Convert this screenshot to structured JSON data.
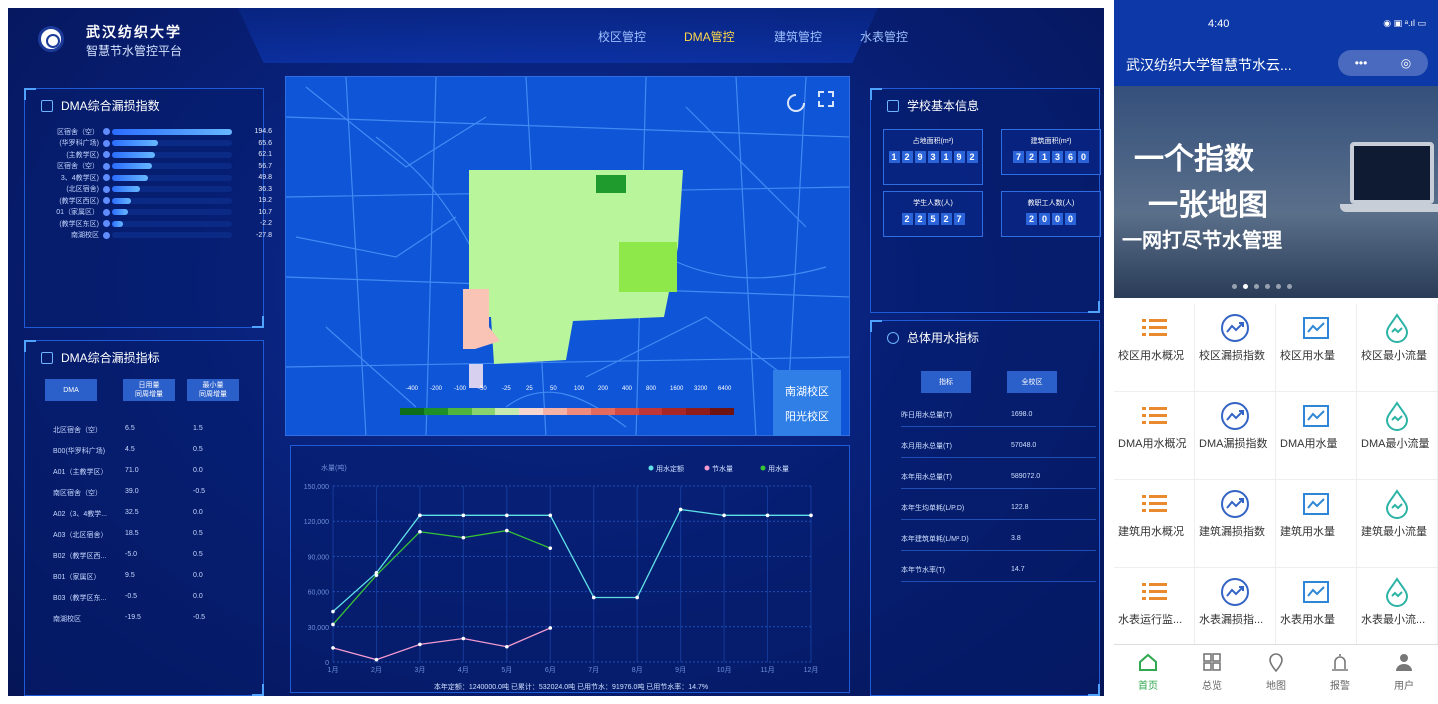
{
  "header": {
    "school": "武汉纺织大学",
    "platform": "智慧节水管控平台",
    "nav": [
      "校区管控",
      "DMA管控",
      "建筑管控",
      "水表管控"
    ],
    "active_nav": "DMA管控"
  },
  "leak_index": {
    "title": "DMA综合漏损指数",
    "rows": [
      {
        "label": "区宿舍（空）",
        "value": "194.6",
        "ratio": 1.0
      },
      {
        "label": "(华罗科广场)",
        "value": "65.6",
        "ratio": 0.38
      },
      {
        "label": "(主教学区)",
        "value": "62.1",
        "ratio": 0.36
      },
      {
        "label": "区宿舍（空）",
        "value": "56.7",
        "ratio": 0.33
      },
      {
        "label": "3、4教学区)",
        "value": "49.8",
        "ratio": 0.3
      },
      {
        "label": "(北区宿舍)",
        "value": "36.3",
        "ratio": 0.23
      },
      {
        "label": "(教学区西区)",
        "value": "19.2",
        "ratio": 0.16
      },
      {
        "label": "01（家属区）",
        "value": "10.7",
        "ratio": 0.13
      },
      {
        "label": "(教学区东区)",
        "value": "-2.2",
        "ratio": 0.09
      },
      {
        "label": "南湖校区",
        "value": "-27.8",
        "ratio": 0.0
      }
    ]
  },
  "leak_table": {
    "title": "DMA综合漏损指标",
    "headers": [
      "DMA",
      "日用量\n同周增量",
      "最小量\n同周增量"
    ],
    "rows": [
      [
        "北区宿舍（空）",
        "6.5",
        "1.5"
      ],
      [
        "B00(华罗科广场)",
        "4.5",
        "0.5"
      ],
      [
        "A01（主教学区）",
        "71.0",
        "0.0"
      ],
      [
        "南区宿舍（空）",
        "39.0",
        "-0.5"
      ],
      [
        "A02（3、4教学...",
        "32.5",
        "0.0"
      ],
      [
        "A03（北区宿舍）",
        "18.5",
        "0.5"
      ],
      [
        "B02（教学区西...",
        "-5.0",
        "0.5"
      ],
      [
        "B01（家属区）",
        "9.5",
        "0.0"
      ],
      [
        "B03（教学区东...",
        "-0.5",
        "0.0"
      ],
      [
        "南湖校区",
        "-19.5",
        "-0.5"
      ]
    ]
  },
  "map": {
    "legend": [
      "-400",
      "-200",
      "-100",
      "-50",
      "-25",
      "25",
      "50",
      "100",
      "200",
      "400",
      "800",
      "1600",
      "3200",
      "6400"
    ],
    "legend_colors": [
      "#0e6e1c",
      "#1f8f2a",
      "#4fb53e",
      "#8ad46f",
      "#c7eab0",
      "#f6d5cf",
      "#f4b2a6",
      "#ef8a7c",
      "#e36a5f",
      "#d34b45",
      "#c03535",
      "#a92626",
      "#8f1b1b",
      "#6e1212"
    ],
    "campuses": [
      "南湖校区",
      "阳光校区"
    ]
  },
  "chart_data": {
    "type": "line",
    "ylabel": "水量(吨)",
    "categories": [
      "1月",
      "2月",
      "3月",
      "4月",
      "5月",
      "6月",
      "7月",
      "8月",
      "9月",
      "10月",
      "11月",
      "12月"
    ],
    "ylim": [
      0,
      150000
    ],
    "yticks": [
      "150,000",
      "120,000",
      "90,000",
      "60,000",
      "30,000",
      "0"
    ],
    "series": [
      {
        "name": "用水定额",
        "color": "#5fe0e8",
        "values": [
          43000,
          76000,
          125000,
          125000,
          125000,
          125000,
          55000,
          55000,
          130000,
          125000,
          125000,
          125000
        ]
      },
      {
        "name": "节水量",
        "color": "#f29ad0",
        "values": [
          12000,
          2000,
          15000,
          20000,
          13000,
          29000,
          null,
          null,
          null,
          null,
          null,
          null
        ]
      },
      {
        "name": "用水量",
        "color": "#37c437",
        "values": [
          32000,
          74000,
          111000,
          106000,
          112000,
          97000,
          null,
          null,
          null,
          null,
          null,
          null
        ]
      }
    ],
    "footer": "本年定额：1240000.0吨   已累计：532024.0吨   已用节水：91976.0吨   已用节水率：14.7%"
  },
  "school_info": {
    "title": "学校基本信息",
    "boxes": [
      {
        "label": "占地面积(m²)",
        "digits": [
          "1",
          "2",
          "9",
          "3",
          "1",
          "9",
          "2"
        ]
      },
      {
        "label": "建筑面积(m²)",
        "digits": [
          "7",
          "2",
          "1",
          "3",
          "6",
          "0"
        ]
      },
      {
        "label": "学生人数(人)",
        "digits": [
          "2",
          "2",
          "5",
          "2",
          "7"
        ]
      },
      {
        "label": "教职工人数(人)",
        "digits": [
          "2",
          "0",
          "0",
          "0"
        ]
      }
    ]
  },
  "water_index": {
    "title": "总体用水指标",
    "headers": [
      "指标",
      "全校区"
    ],
    "rows": [
      [
        "昨日用水总量(T)",
        "1698.0"
      ],
      [
        "本月用水总量(T)",
        "57048.0"
      ],
      [
        "本年用水总量(T)",
        "589072.0"
      ],
      [
        "本年生均单耗(L/P.D)",
        "122.8"
      ],
      [
        "本年建筑单耗(L/M².D)",
        "3.8"
      ],
      [
        "本年节水率(T)",
        "14.7"
      ]
    ]
  },
  "phone": {
    "time": "4:40",
    "status": "◉ ▣ ᵃ.ıl ▭",
    "title": "武汉纺织大学智慧节水云...",
    "capsule": [
      "•••",
      "◎"
    ],
    "banner": [
      "一个指数",
      "一张地图",
      "一网打尽节水管理"
    ],
    "grid": [
      {
        "label": "校区用水概况",
        "icon": "list-icon",
        "color": "#e98a2f"
      },
      {
        "label": "校区漏损指数",
        "icon": "trend-circle-icon",
        "color": "#3464c4"
      },
      {
        "label": "校区用水量",
        "icon": "line-chart-icon",
        "color": "#2f86d6"
      },
      {
        "label": "校区最小流量",
        "icon": "drop-icon",
        "color": "#2bb3a6"
      },
      {
        "label": "DMA用水概况",
        "icon": "list-icon",
        "color": "#e98a2f"
      },
      {
        "label": "DMA漏损指数",
        "icon": "trend-circle-icon",
        "color": "#3464c4"
      },
      {
        "label": "DMA用水量",
        "icon": "line-chart-icon",
        "color": "#2f86d6"
      },
      {
        "label": "DMA最小流量",
        "icon": "drop-icon",
        "color": "#2bb3a6"
      },
      {
        "label": "建筑用水概况",
        "icon": "list-icon",
        "color": "#e98a2f"
      },
      {
        "label": "建筑漏损指数",
        "icon": "trend-circle-icon",
        "color": "#3464c4"
      },
      {
        "label": "建筑用水量",
        "icon": "line-chart-icon",
        "color": "#2f86d6"
      },
      {
        "label": "建筑最小流量",
        "icon": "drop-icon",
        "color": "#2bb3a6"
      },
      {
        "label": "水表运行监...",
        "icon": "list-icon",
        "color": "#e98a2f"
      },
      {
        "label": "水表漏损指...",
        "icon": "trend-circle-icon",
        "color": "#3464c4"
      },
      {
        "label": "水表用水量",
        "icon": "line-chart-icon",
        "color": "#2f86d6"
      },
      {
        "label": "水表最小流...",
        "icon": "drop-icon",
        "color": "#2bb3a6"
      }
    ],
    "tabs": [
      "首页",
      "总览",
      "地图",
      "报警",
      "用户"
    ],
    "active_tab": "首页"
  }
}
